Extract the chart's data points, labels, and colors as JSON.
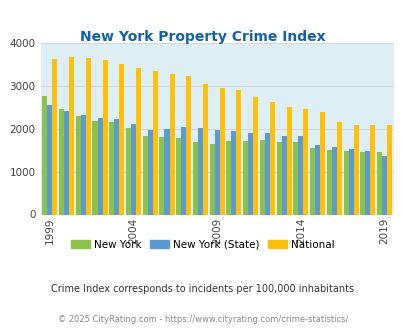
{
  "title": "New York Property Crime Index",
  "subtitle": "Crime Index corresponds to incidents per 100,000 inhabitants",
  "footer": "© 2025 CityRating.com - https://www.cityrating.com/crime-statistics/",
  "years": [
    1999,
    2000,
    2001,
    2002,
    2003,
    2004,
    2005,
    2006,
    2007,
    2008,
    2009,
    2010,
    2011,
    2012,
    2013,
    2014,
    2015,
    2016,
    2017,
    2018,
    2019
  ],
  "xtick_years": [
    1999,
    2004,
    2009,
    2014,
    2019
  ],
  "new_york": [
    2760,
    2450,
    2300,
    2180,
    2160,
    2020,
    1840,
    1800,
    1780,
    1700,
    1650,
    1710,
    1710,
    1730,
    1700,
    1680,
    1540,
    1500,
    1470,
    1460,
    1460
  ],
  "ny_state": [
    2560,
    2410,
    2310,
    2260,
    2230,
    2120,
    1960,
    2000,
    2050,
    2010,
    1980,
    1950,
    1910,
    1910,
    1840,
    1840,
    1620,
    1580,
    1520,
    1480,
    1370
  ],
  "national": [
    3620,
    3670,
    3640,
    3600,
    3510,
    3420,
    3340,
    3280,
    3220,
    3040,
    2950,
    2900,
    2750,
    2630,
    2500,
    2460,
    2380,
    2160,
    2090,
    2090,
    2090
  ],
  "color_ny": "#8bc34a",
  "color_state": "#5b9bd5",
  "color_national": "#ffc107",
  "bg_color": "#ddeef5",
  "title_color": "#1060b0",
  "ylim": [
    0,
    4000
  ],
  "yticks": [
    0,
    1000,
    2000,
    3000,
    4000
  ],
  "grid_color": "#cccccc",
  "bar_width": 0.3,
  "legend_labels": [
    "New York",
    "New York (State)",
    "National"
  ],
  "subtitle_color": "#333333",
  "footer_color": "#888888"
}
